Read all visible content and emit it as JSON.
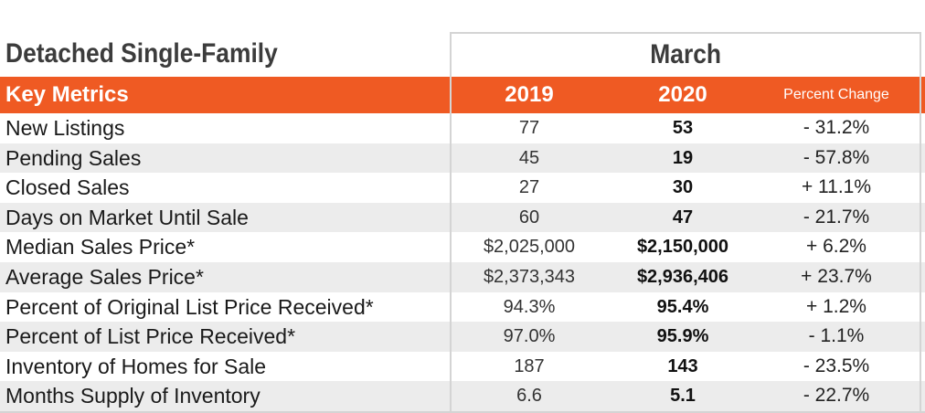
{
  "title": {
    "category": "Detached Single-Family",
    "period": "March"
  },
  "header": {
    "metric_col": "Key Metrics",
    "year1": "2019",
    "year2": "2020",
    "change_col": "Percent Change"
  },
  "colors": {
    "header_bg": "#ef5a23",
    "stripe": "#ececec"
  },
  "rows": [
    {
      "label": "New Listings",
      "y2019": "77",
      "y2020": "53",
      "change": "- 31.2%"
    },
    {
      "label": "Pending Sales",
      "y2019": "45",
      "y2020": "19",
      "change": "- 57.8%"
    },
    {
      "label": "Closed Sales",
      "y2019": "27",
      "y2020": "30",
      "change": "+ 11.1%"
    },
    {
      "label": "Days on Market Until Sale",
      "y2019": "60",
      "y2020": "47",
      "change": "- 21.7%"
    },
    {
      "label": "Median Sales Price*",
      "y2019": "$2,025,000",
      "y2020": "$2,150,000",
      "change": "+ 6.2%"
    },
    {
      "label": "Average Sales Price*",
      "y2019": "$2,373,343",
      "y2020": "$2,936,406",
      "change": "+ 23.7%"
    },
    {
      "label": "Percent of Original List Price Received*",
      "y2019": "94.3%",
      "y2020": "95.4%",
      "change": "+ 1.2%"
    },
    {
      "label": "Percent of List Price Received*",
      "y2019": "97.0%",
      "y2020": "95.9%",
      "change": "- 1.1%"
    },
    {
      "label": "Inventory of Homes for Sale",
      "y2019": "187",
      "y2020": "143",
      "change": "- 23.5%"
    },
    {
      "label": "Months Supply of Inventory",
      "y2019": "6.6",
      "y2020": "5.1",
      "change": "- 22.7%"
    }
  ]
}
